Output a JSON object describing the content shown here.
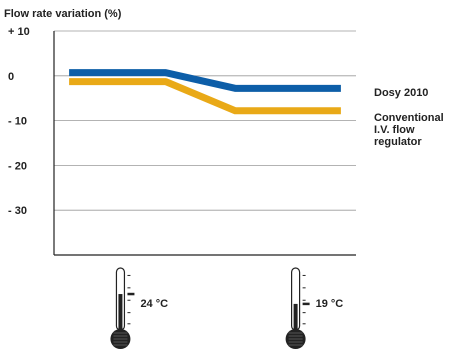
{
  "chart_data": {
    "type": "line",
    "title": "Flow rate variation (%)",
    "xlabel": "",
    "ylabel": "Flow rate variation (%)",
    "ylim": [
      -40,
      10
    ],
    "y_ticks": [
      {
        "value": 10,
        "label": "+ 10"
      },
      {
        "value": 0,
        "label": "0"
      },
      {
        "value": -10,
        "label": "- 10"
      },
      {
        "value": -20,
        "label": "- 20"
      },
      {
        "value": -30,
        "label": "- 30"
      }
    ],
    "x_domain": [
      0,
      100
    ],
    "grid": true,
    "legend_position": "right",
    "series": [
      {
        "name": "Dosy 2010",
        "color": "#0d5ea8",
        "x": [
          5,
          37,
          60,
          95
        ],
        "y": [
          0.7,
          0.7,
          -2.8,
          -2.8
        ]
      },
      {
        "name": "Conventional\nI.V. flow\nregulator",
        "color": "#e9a917",
        "x": [
          5,
          37,
          60,
          95
        ],
        "y": [
          -1.3,
          -1.3,
          -7.8,
          -7.8
        ]
      }
    ],
    "annotations": [
      {
        "label": "24 °C",
        "icon": "thermometer-icon",
        "fill_level": 0.62,
        "x": 22
      },
      {
        "label": "19 °C",
        "icon": "thermometer-icon",
        "fill_level": 0.45,
        "x": 80
      }
    ]
  }
}
